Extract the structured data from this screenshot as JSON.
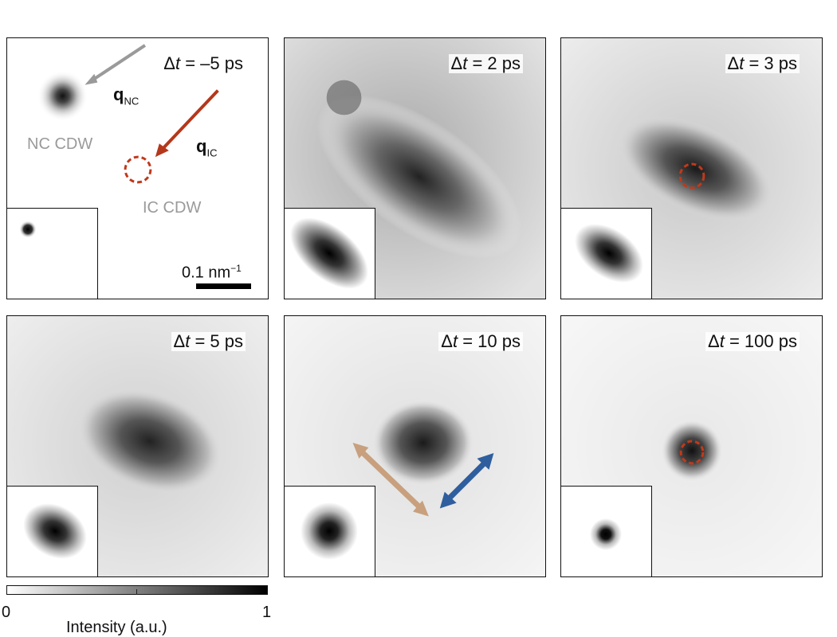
{
  "panels": [
    {
      "dt_prefix": "Δ",
      "dt_var": "t",
      "dt_value": " = –5 ps"
    },
    {
      "dt_prefix": "Δ",
      "dt_var": "t",
      "dt_value": " = 2 ps"
    },
    {
      "dt_prefix": "Δ",
      "dt_var": "t",
      "dt_value": " = 3 ps"
    },
    {
      "dt_prefix": "Δ",
      "dt_var": "t",
      "dt_value": " = 5 ps"
    },
    {
      "dt_prefix": "Δ",
      "dt_var": "t",
      "dt_value": " = 10 ps"
    },
    {
      "dt_prefix": "Δ",
      "dt_var": "t",
      "dt_value": " = 100 ps"
    }
  ],
  "annotations": {
    "q_nc": "q",
    "q_nc_sub": "NC",
    "q_ic": "q",
    "q_ic_sub": "IC",
    "nc_cdw": "NC CDW",
    "ic_cdw": "IC CDW",
    "scale_text": "0.1 nm",
    "scale_exp": "−1"
  },
  "colorbar": {
    "min_label": "0",
    "max_label": "1",
    "title": "Intensity (a.u.)"
  },
  "colors": {
    "ic_marker": "#c0391b",
    "q_nc_arrow": "#9a9a9a",
    "q_ic_arrow": "#b5371a",
    "tan_arrow": "#c8a07e",
    "blue_arrow": "#2f5e9e"
  }
}
